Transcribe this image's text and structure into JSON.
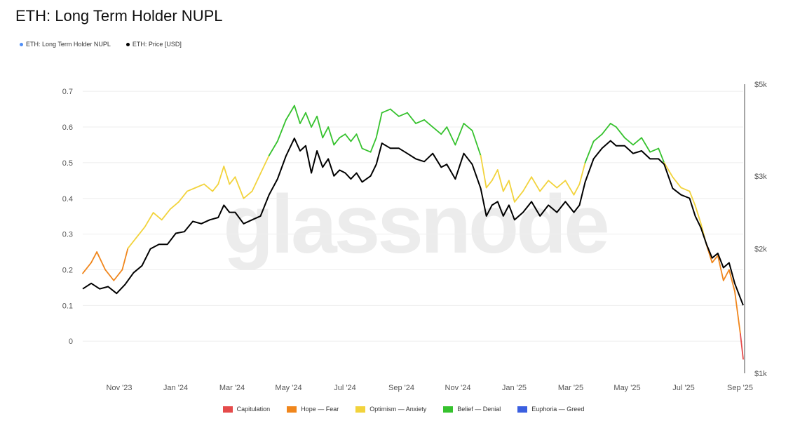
{
  "chart_data": {
    "type": "line",
    "title": "ETH: Long Term Holder NUPL",
    "watermark": "glassnode",
    "legend_top": [
      {
        "name": "ETH: Long Term Holder NUPL",
        "color": "#4e8ef7"
      },
      {
        "name": "ETH: Price [USD]",
        "color": "#000000"
      }
    ],
    "legend_bottom": [
      {
        "name": "Capitulation",
        "color": "#e54b4b"
      },
      {
        "name": "Hope — Fear",
        "color": "#f0861c"
      },
      {
        "name": "Optimism — Anxiety",
        "color": "#f2d33c"
      },
      {
        "name": "Belief — Denial",
        "color": "#36c22e"
      },
      {
        "name": "Euphoria — Greed",
        "color": "#3b5fe0"
      }
    ],
    "x_ticks": [
      "Nov '23",
      "Jan '24",
      "Mar '24",
      "May '24",
      "Jul '24",
      "Sep '24",
      "Nov '24",
      "Jan '25",
      "Mar '25",
      "May '25",
      "Jul '25",
      "Sep '25"
    ],
    "y_left_ticks": [
      "0.7",
      "0.6",
      "0.5",
      "0.4",
      "0.3",
      "0.2",
      "0.1",
      "0"
    ],
    "y_left_values": [
      0.7,
      0.6,
      0.5,
      0.4,
      0.3,
      0.2,
      0.1,
      0
    ],
    "y_left_range": [
      -0.09,
      0.72
    ],
    "y_right_ticks": [
      "$5k",
      "$3k",
      "$2k",
      "$1k"
    ],
    "y_right_values": [
      5000,
      3000,
      2000,
      1000
    ],
    "y_right_scale": "log",
    "y_right_range": [
      1000,
      5000
    ],
    "x_range": [
      0,
      23.4
    ],
    "zone_thresholds": {
      "capitulation_max": 0,
      "hope_fear_max": 0.25,
      "optimism_anxiety_max": 0.5,
      "belief_denial_max": 0.75
    },
    "series": [
      {
        "name": "ETH: Long Term Holder NUPL",
        "points": [
          [
            0,
            0.19
          ],
          [
            0.3,
            0.22
          ],
          [
            0.5,
            0.25
          ],
          [
            0.8,
            0.2
          ],
          [
            1.1,
            0.17
          ],
          [
            1.4,
            0.2
          ],
          [
            1.6,
            0.26
          ],
          [
            1.9,
            0.29
          ],
          [
            2.2,
            0.32
          ],
          [
            2.5,
            0.36
          ],
          [
            2.8,
            0.34
          ],
          [
            3.1,
            0.37
          ],
          [
            3.4,
            0.39
          ],
          [
            3.7,
            0.42
          ],
          [
            4,
            0.43
          ],
          [
            4.3,
            0.44
          ],
          [
            4.6,
            0.42
          ],
          [
            4.8,
            0.44
          ],
          [
            5,
            0.49
          ],
          [
            5.2,
            0.44
          ],
          [
            5.4,
            0.46
          ],
          [
            5.7,
            0.4
          ],
          [
            6,
            0.42
          ],
          [
            6.3,
            0.47
          ],
          [
            6.6,
            0.52
          ],
          [
            6.9,
            0.56
          ],
          [
            7.2,
            0.62
          ],
          [
            7.5,
            0.66
          ],
          [
            7.7,
            0.61
          ],
          [
            7.9,
            0.64
          ],
          [
            8.1,
            0.6
          ],
          [
            8.3,
            0.63
          ],
          [
            8.5,
            0.57
          ],
          [
            8.7,
            0.6
          ],
          [
            8.9,
            0.55
          ],
          [
            9.1,
            0.57
          ],
          [
            9.3,
            0.58
          ],
          [
            9.5,
            0.56
          ],
          [
            9.7,
            0.58
          ],
          [
            9.9,
            0.54
          ],
          [
            10.2,
            0.53
          ],
          [
            10.4,
            0.57
          ],
          [
            10.6,
            0.64
          ],
          [
            10.9,
            0.65
          ],
          [
            11.2,
            0.63
          ],
          [
            11.5,
            0.64
          ],
          [
            11.8,
            0.61
          ],
          [
            12.1,
            0.62
          ],
          [
            12.4,
            0.6
          ],
          [
            12.7,
            0.58
          ],
          [
            12.9,
            0.6
          ],
          [
            13.2,
            0.55
          ],
          [
            13.5,
            0.61
          ],
          [
            13.8,
            0.59
          ],
          [
            14.1,
            0.52
          ],
          [
            14.3,
            0.43
          ],
          [
            14.5,
            0.45
          ],
          [
            14.7,
            0.48
          ],
          [
            14.9,
            0.42
          ],
          [
            15.1,
            0.45
          ],
          [
            15.3,
            0.39
          ],
          [
            15.6,
            0.42
          ],
          [
            15.9,
            0.46
          ],
          [
            16.2,
            0.42
          ],
          [
            16.5,
            0.45
          ],
          [
            16.8,
            0.43
          ],
          [
            17.1,
            0.45
          ],
          [
            17.4,
            0.41
          ],
          [
            17.6,
            0.44
          ],
          [
            17.8,
            0.5
          ],
          [
            18.1,
            0.56
          ],
          [
            18.4,
            0.58
          ],
          [
            18.7,
            0.61
          ],
          [
            18.9,
            0.6
          ],
          [
            19.2,
            0.57
          ],
          [
            19.5,
            0.55
          ],
          [
            19.8,
            0.57
          ],
          [
            20.1,
            0.53
          ],
          [
            20.4,
            0.54
          ],
          [
            20.6,
            0.5
          ],
          [
            20.9,
            0.46
          ],
          [
            21.2,
            0.43
          ],
          [
            21.5,
            0.42
          ],
          [
            21.7,
            0.38
          ],
          [
            21.9,
            0.33
          ],
          [
            22.1,
            0.27
          ],
          [
            22.3,
            0.22
          ],
          [
            22.5,
            0.24
          ],
          [
            22.7,
            0.17
          ],
          [
            22.9,
            0.2
          ],
          [
            23.1,
            0.14
          ],
          [
            23.3,
            0.02
          ],
          [
            23.4,
            -0.05
          ]
        ]
      },
      {
        "name": "ETH: Price [USD]",
        "points": [
          [
            0,
            1600
          ],
          [
            0.3,
            1650
          ],
          [
            0.6,
            1600
          ],
          [
            0.9,
            1620
          ],
          [
            1.2,
            1560
          ],
          [
            1.5,
            1640
          ],
          [
            1.8,
            1750
          ],
          [
            2.1,
            1820
          ],
          [
            2.4,
            2000
          ],
          [
            2.7,
            2050
          ],
          [
            3,
            2050
          ],
          [
            3.3,
            2180
          ],
          [
            3.6,
            2200
          ],
          [
            3.9,
            2330
          ],
          [
            4.2,
            2300
          ],
          [
            4.5,
            2350
          ],
          [
            4.8,
            2380
          ],
          [
            5,
            2550
          ],
          [
            5.2,
            2450
          ],
          [
            5.4,
            2450
          ],
          [
            5.7,
            2300
          ],
          [
            6,
            2350
          ],
          [
            6.3,
            2400
          ],
          [
            6.6,
            2700
          ],
          [
            6.9,
            2950
          ],
          [
            7.2,
            3350
          ],
          [
            7.5,
            3700
          ],
          [
            7.7,
            3450
          ],
          [
            7.9,
            3550
          ],
          [
            8.1,
            3050
          ],
          [
            8.3,
            3450
          ],
          [
            8.5,
            3150
          ],
          [
            8.7,
            3300
          ],
          [
            8.9,
            3000
          ],
          [
            9.1,
            3100
          ],
          [
            9.3,
            3050
          ],
          [
            9.5,
            2950
          ],
          [
            9.7,
            3050
          ],
          [
            9.9,
            2900
          ],
          [
            10.2,
            3000
          ],
          [
            10.4,
            3200
          ],
          [
            10.6,
            3600
          ],
          [
            10.9,
            3500
          ],
          [
            11.2,
            3500
          ],
          [
            11.5,
            3400
          ],
          [
            11.8,
            3300
          ],
          [
            12.1,
            3250
          ],
          [
            12.4,
            3400
          ],
          [
            12.7,
            3150
          ],
          [
            12.9,
            3200
          ],
          [
            13.2,
            2950
          ],
          [
            13.5,
            3400
          ],
          [
            13.8,
            3200
          ],
          [
            14.1,
            2800
          ],
          [
            14.3,
            2400
          ],
          [
            14.5,
            2550
          ],
          [
            14.7,
            2600
          ],
          [
            14.9,
            2400
          ],
          [
            15.1,
            2550
          ],
          [
            15.3,
            2350
          ],
          [
            15.6,
            2450
          ],
          [
            15.9,
            2600
          ],
          [
            16.2,
            2400
          ],
          [
            16.5,
            2550
          ],
          [
            16.8,
            2450
          ],
          [
            17.1,
            2600
          ],
          [
            17.4,
            2450
          ],
          [
            17.6,
            2550
          ],
          [
            17.8,
            2900
          ],
          [
            18.1,
            3300
          ],
          [
            18.4,
            3500
          ],
          [
            18.7,
            3650
          ],
          [
            18.9,
            3550
          ],
          [
            19.2,
            3550
          ],
          [
            19.5,
            3400
          ],
          [
            19.8,
            3450
          ],
          [
            20.1,
            3300
          ],
          [
            20.4,
            3300
          ],
          [
            20.6,
            3200
          ],
          [
            20.9,
            2800
          ],
          [
            21.2,
            2700
          ],
          [
            21.5,
            2650
          ],
          [
            21.7,
            2400
          ],
          [
            21.9,
            2250
          ],
          [
            22.1,
            2050
          ],
          [
            22.3,
            1900
          ],
          [
            22.5,
            1950
          ],
          [
            22.7,
            1800
          ],
          [
            22.9,
            1850
          ],
          [
            23.1,
            1650
          ],
          [
            23.3,
            1520
          ],
          [
            23.4,
            1460
          ]
        ]
      }
    ]
  }
}
